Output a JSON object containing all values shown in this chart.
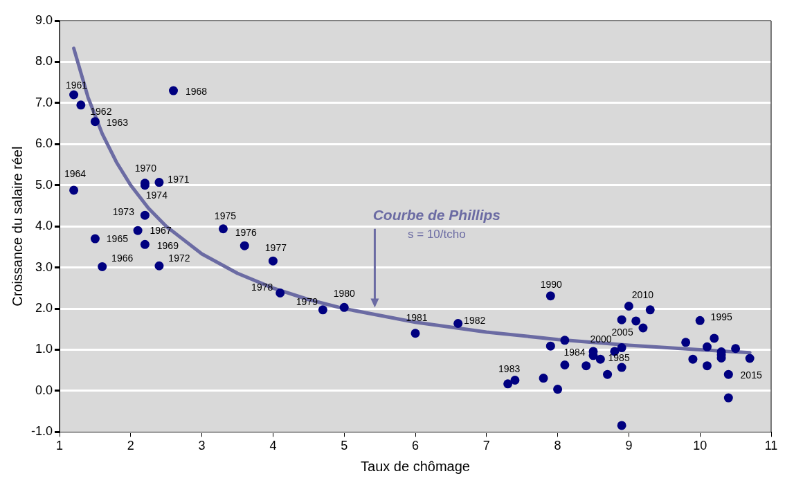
{
  "chart_data": {
    "type": "scatter",
    "xlabel": "Taux de chômage",
    "ylabel": "Croissance du salaire réel",
    "xlim": [
      1,
      11
    ],
    "xticks": [
      1,
      2,
      3,
      4,
      5,
      6,
      7,
      8,
      9,
      10,
      11
    ],
    "ylim": [
      -1,
      9
    ],
    "yticks": [
      {
        "value": -1,
        "label": "-1.0"
      },
      {
        "value": 0,
        "label": "0.0"
      },
      {
        "value": 1,
        "label": "1.0"
      },
      {
        "value": 2,
        "label": "2.0"
      },
      {
        "value": 3,
        "label": "3.0"
      },
      {
        "value": 4,
        "label": "4.0"
      },
      {
        "value": 5,
        "label": "5.0"
      },
      {
        "value": 6,
        "label": "6.0"
      },
      {
        "value": 7,
        "label": "7.0"
      },
      {
        "value": 8,
        "label": "8.0"
      },
      {
        "value": 9,
        "label": "9.0"
      }
    ],
    "grid": "y",
    "legend": false,
    "series": [
      {
        "type": "scatter",
        "marker": "circle",
        "color": "#000080",
        "x": [
          1.2,
          1.3,
          1.5,
          1.2,
          1.5,
          1.6,
          2.1,
          2.6,
          2.2,
          2.2,
          2.4,
          2.4,
          2.2,
          2.2,
          3.3,
          3.6,
          4.0,
          4.1,
          4.7,
          5.0,
          6.0,
          6.6,
          7.3,
          7.4,
          7.8,
          8.0,
          7.9,
          7.9,
          8.1,
          8.1,
          8.4,
          8.5,
          8.5,
          8.6,
          8.7,
          8.8,
          8.9,
          8.9,
          8.9,
          8.9,
          9.0,
          9.1,
          9.2,
          9.3,
          9.8,
          9.9,
          10.0,
          10.1,
          10.1,
          10.2,
          10.3,
          10.3,
          10.3,
          10.4,
          10.4,
          10.5,
          10.7
        ],
        "values": [
          7.2,
          6.95,
          6.55,
          4.88,
          3.7,
          3.02,
          3.9,
          7.3,
          3.56,
          5.0,
          5.07,
          3.04,
          4.27,
          5.05,
          3.94,
          3.53,
          3.16,
          2.38,
          1.97,
          2.03,
          1.4,
          1.64,
          0.17,
          0.26,
          0.31,
          0.04,
          2.31,
          1.09,
          1.23,
          0.63,
          0.61,
          0.96,
          0.86,
          0.77,
          0.4,
          0.96,
          1.05,
          1.73,
          0.57,
          -0.84,
          2.06,
          1.7,
          1.53,
          1.97,
          1.18,
          0.77,
          1.71,
          1.07,
          0.61,
          1.28,
          0.95,
          0.8,
          0.88,
          0.4,
          -0.17,
          1.03,
          0.79
        ]
      },
      {
        "type": "line",
        "marker": "none",
        "line_style": "solid",
        "color": "#6b6ba3",
        "x": [
          1.2,
          1.4,
          1.6,
          1.8,
          2,
          2.25,
          2.5,
          3,
          3.5,
          4,
          4.5,
          5,
          6,
          7,
          8,
          9,
          10,
          10.7
        ],
        "values": [
          8.33,
          7.14,
          6.25,
          5.56,
          5,
          4.44,
          4,
          3.33,
          2.86,
          2.5,
          2.22,
          2,
          1.67,
          1.43,
          1.25,
          1.11,
          1,
          0.93
        ]
      }
    ],
    "annotations": [
      "Courbe de Phillips",
      "s = 10/tcho",
      {
        "text": "1961",
        "x": 1.2,
        "y": 7.2
      },
      {
        "text": "1962",
        "x": 1.3,
        "y": 6.95
      },
      {
        "text": "1963",
        "x": 1.5,
        "y": 6.55
      },
      {
        "text": "1964",
        "x": 1.2,
        "y": 4.88
      },
      {
        "text": "1965",
        "x": 1.5,
        "y": 3.7
      },
      {
        "text": "1966",
        "x": 1.6,
        "y": 3.02
      },
      {
        "text": "1967",
        "x": 2.1,
        "y": 3.9
      },
      {
        "text": "1968",
        "x": 2.6,
        "y": 7.3
      },
      {
        "text": "1969",
        "x": 2.2,
        "y": 3.56
      },
      {
        "text": "1970",
        "x": 2.2,
        "y": 5.05
      },
      {
        "text": "1971",
        "x": 2.4,
        "y": 5.07
      },
      {
        "text": "1972",
        "x": 2.4,
        "y": 3.04
      },
      {
        "text": "1973",
        "x": 2.2,
        "y": 4.27
      },
      {
        "text": "1974",
        "x": 2.2,
        "y": 5.0
      },
      {
        "text": "1975",
        "x": 3.3,
        "y": 3.94
      },
      {
        "text": "1976",
        "x": 3.6,
        "y": 3.53
      },
      {
        "text": "1977",
        "x": 4.0,
        "y": 3.16
      },
      {
        "text": "1978",
        "x": 4.1,
        "y": 2.38
      },
      {
        "text": "1979",
        "x": 4.7,
        "y": 1.97
      },
      {
        "text": "1980",
        "x": 5.0,
        "y": 2.03
      },
      {
        "text": "1981",
        "x": 6.0,
        "y": 1.4
      },
      {
        "text": "1982",
        "x": 6.6,
        "y": 1.64
      },
      {
        "text": "1983",
        "x": 7.3,
        "y": 0.17
      },
      {
        "text": "1984",
        "x": 8.5,
        "y": 0.86
      },
      {
        "text": "1985",
        "x": 8.9,
        "y": 0.57
      },
      {
        "text": "1990",
        "x": 7.9,
        "y": 2.31
      },
      {
        "text": "1995",
        "x": 10.0,
        "y": 1.71
      },
      {
        "text": "2000",
        "x": 8.5,
        "y": 0.96
      },
      {
        "text": "2005",
        "x": 8.9,
        "y": 1.05
      },
      {
        "text": "2010",
        "x": 9.0,
        "y": 2.06
      },
      {
        "text": "2015",
        "x": 10.7,
        "y": 0.79
      }
    ]
  }
}
